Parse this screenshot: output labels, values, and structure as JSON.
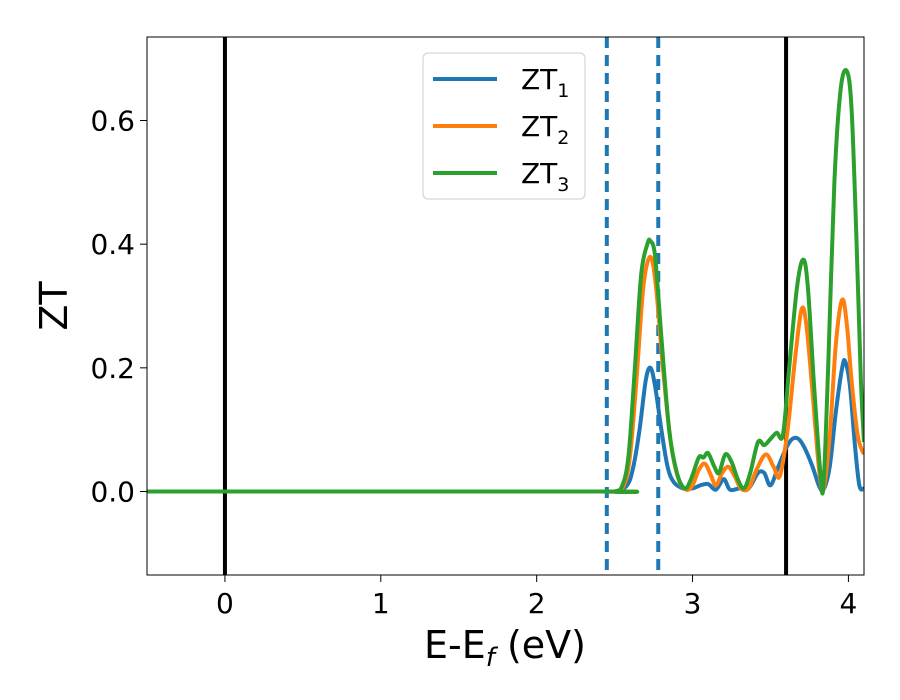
{
  "chart_data": {
    "type": "line",
    "xlabel": "E-E",
    "xlabel_sub": "f",
    "xlabel_suffix": " (eV)",
    "ylabel": "ZT",
    "xlim": [
      -0.5,
      4.1
    ],
    "ylim": [
      -0.135,
      0.735
    ],
    "xticks": [
      0,
      1,
      2,
      3,
      4
    ],
    "xtick_labels": [
      "0",
      "1",
      "2",
      "3",
      "4"
    ],
    "yticks": [
      0.0,
      0.2,
      0.4,
      0.6
    ],
    "ytick_labels": [
      "0.0",
      "0.2",
      "0.4",
      "0.6"
    ],
    "grid": false,
    "legend_position": "upper center",
    "vlines_solid": [
      0.0,
      3.6
    ],
    "vlines_dashed": [
      2.45,
      2.78
    ],
    "series": [
      {
        "name": "ZT",
        "name_sub": "1",
        "color": "#1f77b4",
        "points": [
          [
            -0.5,
            0
          ],
          [
            2.4,
            0
          ],
          [
            2.5,
            0.0
          ],
          [
            2.58,
            0.01
          ],
          [
            2.62,
            0.04
          ],
          [
            2.66,
            0.1
          ],
          [
            2.7,
            0.18
          ],
          [
            2.73,
            0.2
          ],
          [
            2.76,
            0.17
          ],
          [
            2.8,
            0.1
          ],
          [
            2.84,
            0.04
          ],
          [
            2.88,
            0.015
          ],
          [
            2.94,
            0.005
          ],
          [
            3.0,
            0.005
          ],
          [
            3.05,
            0.01
          ],
          [
            3.1,
            0.012
          ],
          [
            3.15,
            0.003
          ],
          [
            3.2,
            0.02
          ],
          [
            3.24,
            0.003
          ],
          [
            3.3,
            0.005
          ],
          [
            3.36,
            0.005
          ],
          [
            3.42,
            0.03
          ],
          [
            3.46,
            0.03
          ],
          [
            3.5,
            0.01
          ],
          [
            3.55,
            0.04
          ],
          [
            3.6,
            0.07
          ],
          [
            3.64,
            0.085
          ],
          [
            3.68,
            0.085
          ],
          [
            3.72,
            0.07
          ],
          [
            3.77,
            0.04
          ],
          [
            3.81,
            0.01
          ],
          [
            3.84,
            0.003
          ],
          [
            3.88,
            0.04
          ],
          [
            3.92,
            0.13
          ],
          [
            3.96,
            0.2
          ],
          [
            3.98,
            0.21
          ],
          [
            4.01,
            0.17
          ],
          [
            4.04,
            0.08
          ],
          [
            4.07,
            0.01
          ],
          [
            4.1,
            0.005
          ]
        ]
      },
      {
        "name": "ZT",
        "name_sub": "2",
        "color": "#ff7f0e",
        "points": [
          [
            -0.5,
            0
          ],
          [
            2.4,
            0
          ],
          [
            2.5,
            0.0
          ],
          [
            2.56,
            0.01
          ],
          [
            2.6,
            0.06
          ],
          [
            2.64,
            0.18
          ],
          [
            2.68,
            0.32
          ],
          [
            2.71,
            0.37
          ],
          [
            2.74,
            0.375
          ],
          [
            2.77,
            0.32
          ],
          [
            2.81,
            0.2
          ],
          [
            2.86,
            0.08
          ],
          [
            2.91,
            0.02
          ],
          [
            2.96,
            0.003
          ],
          [
            3.0,
            0.01
          ],
          [
            3.04,
            0.035
          ],
          [
            3.08,
            0.045
          ],
          [
            3.12,
            0.025
          ],
          [
            3.15,
            0.01
          ],
          [
            3.19,
            0.03
          ],
          [
            3.23,
            0.04
          ],
          [
            3.27,
            0.025
          ],
          [
            3.31,
            0.005
          ],
          [
            3.36,
            0.005
          ],
          [
            3.41,
            0.035
          ],
          [
            3.47,
            0.06
          ],
          [
            3.52,
            0.04
          ],
          [
            3.56,
            0.025
          ],
          [
            3.61,
            0.1
          ],
          [
            3.66,
            0.22
          ],
          [
            3.7,
            0.295
          ],
          [
            3.73,
            0.27
          ],
          [
            3.77,
            0.16
          ],
          [
            3.81,
            0.04
          ],
          [
            3.84,
            0.003
          ],
          [
            3.88,
            0.09
          ],
          [
            3.92,
            0.24
          ],
          [
            3.96,
            0.31
          ],
          [
            3.99,
            0.27
          ],
          [
            4.02,
            0.18
          ],
          [
            4.06,
            0.09
          ],
          [
            4.1,
            0.06
          ]
        ]
      },
      {
        "name": "ZT",
        "name_sub": "3",
        "color": "#2ca02c",
        "points": [
          [
            -0.5,
            0
          ],
          [
            2.4,
            0
          ],
          [
            2.5,
            0.0
          ],
          [
            2.55,
            0.01
          ],
          [
            2.59,
            0.06
          ],
          [
            2.63,
            0.2
          ],
          [
            2.67,
            0.35
          ],
          [
            2.71,
            0.4
          ],
          [
            2.73,
            0.405
          ],
          [
            2.76,
            0.38
          ],
          [
            2.8,
            0.25
          ],
          [
            2.85,
            0.1
          ],
          [
            2.9,
            0.03
          ],
          [
            2.95,
            0.005
          ],
          [
            2.99,
            0.02
          ],
          [
            3.04,
            0.055
          ],
          [
            3.07,
            0.055
          ],
          [
            3.1,
            0.062
          ],
          [
            3.14,
            0.04
          ],
          [
            3.17,
            0.03
          ],
          [
            3.21,
            0.06
          ],
          [
            3.25,
            0.048
          ],
          [
            3.29,
            0.02
          ],
          [
            3.33,
            0.005
          ],
          [
            3.37,
            0.03
          ],
          [
            3.42,
            0.08
          ],
          [
            3.46,
            0.075
          ],
          [
            3.5,
            0.085
          ],
          [
            3.54,
            0.095
          ],
          [
            3.58,
            0.092
          ],
          [
            3.62,
            0.2
          ],
          [
            3.67,
            0.33
          ],
          [
            3.71,
            0.375
          ],
          [
            3.74,
            0.33
          ],
          [
            3.78,
            0.17
          ],
          [
            3.82,
            0.03
          ],
          [
            3.84,
            0.01
          ],
          [
            3.87,
            0.2
          ],
          [
            3.91,
            0.5
          ],
          [
            3.95,
            0.65
          ],
          [
            3.99,
            0.68
          ],
          [
            4.02,
            0.62
          ],
          [
            4.05,
            0.42
          ],
          [
            4.08,
            0.18
          ],
          [
            4.1,
            0.08
          ]
        ]
      }
    ]
  }
}
